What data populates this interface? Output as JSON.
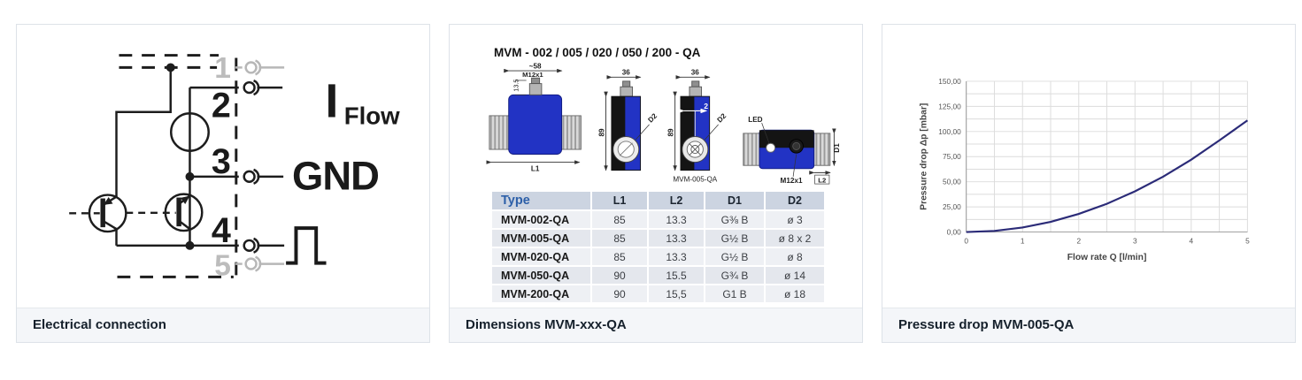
{
  "cards": [
    {
      "caption": "Electrical connection",
      "circuit": {
        "pin1": "1",
        "pin2": "2",
        "pin3": "3",
        "pin4": "4",
        "pin5": "5",
        "label_i": "I",
        "label_i_sub": "Flow",
        "label_gnd": "GND"
      }
    },
    {
      "caption": "Dimensions MVM-xxx-QA",
      "title": "MVM - 002 / 005 / 020 / 050 / 200 - QA",
      "drawing": {
        "dim_58": "~58",
        "dim_m12_top": "M12x1",
        "dim_135": "13.5",
        "dim_l1": "L1",
        "dim_36_a": "36",
        "dim_89_a": "89",
        "dim_d2_a": "D2",
        "dim_36_b": "36",
        "dim_89_b": "89",
        "dim_d2_b": "D2",
        "dim_2": "2",
        "model_label": "MVM-005-QA",
        "led_label": "LED",
        "m12_label": "M12x1",
        "dim_d1": "D1",
        "dim_l2": "L2"
      },
      "table": {
        "headers": [
          "Type",
          "L1",
          "L2",
          "D1",
          "D2"
        ],
        "rows": [
          [
            "MVM-002-QA",
            "85",
            "13.3",
            "G⅜ B",
            "ø 3"
          ],
          [
            "MVM-005-QA",
            "85",
            "13.3",
            "G½ B",
            "ø 8 x 2"
          ],
          [
            "MVM-020-QA",
            "85",
            "13.3",
            "G½ B",
            "ø 8"
          ],
          [
            "MVM-050-QA",
            "90",
            "15.5",
            "G¾ B",
            "ø 14"
          ],
          [
            "MVM-200-QA",
            "90",
            "15,5",
            "G1 B",
            "ø 18"
          ]
        ]
      }
    },
    {
      "caption": "Pressure drop MVM-005-QA"
    }
  ],
  "chart_data": {
    "type": "line",
    "x": [
      0,
      0.5,
      1,
      1.5,
      2,
      2.5,
      3,
      3.5,
      4,
      4.5,
      5
    ],
    "y": [
      0,
      1.1,
      4.5,
      10.1,
      18,
      28.1,
      40.5,
      55.1,
      72,
      91.1,
      111
    ],
    "title": "",
    "xlabel": "Flow rate Q [l/min]",
    "ylabel": "Pressure drop Δp [mbar]",
    "xlim": [
      0,
      5
    ],
    "ylim": [
      0,
      150
    ],
    "x_ticks": [
      0,
      1,
      2,
      3,
      4,
      5
    ],
    "y_ticks": [
      "0,00",
      "25,00",
      "50,00",
      "75,00",
      "100,00",
      "125,00",
      "150,00"
    ],
    "x_minor_step": 0.5,
    "y_minor_step": 12.5,
    "grid": true,
    "line_color": "#2b2b78"
  }
}
